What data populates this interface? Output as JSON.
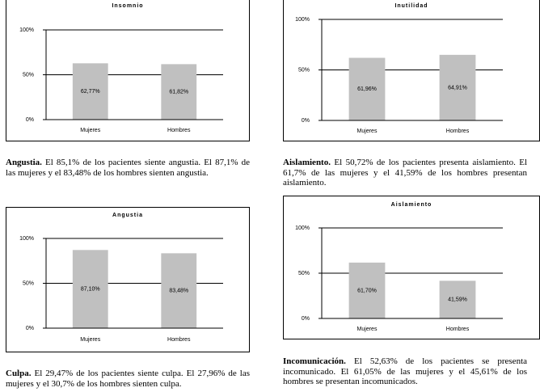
{
  "chart_data": [
    {
      "type": "bar",
      "title": "Insomnio",
      "categories": [
        "Mujeres",
        "Hombres"
      ],
      "values": [
        62.77,
        61.82
      ],
      "value_labels": [
        "62,77%",
        "61,82%"
      ],
      "color": "#c0c0c0",
      "ylim": [
        0,
        100
      ],
      "yticks": [
        {
          "value": 0,
          "label": "0%"
        },
        {
          "value": 50,
          "label": "50%"
        },
        {
          "value": 100,
          "label": "100%"
        }
      ],
      "grid": true
    },
    {
      "type": "bar",
      "title": "Inutilidad",
      "categories": [
        "Mujeres",
        "Hombres"
      ],
      "values": [
        61.96,
        64.91
      ],
      "value_labels": [
        "61,96%",
        "64,91%"
      ],
      "color": "#c0c0c0",
      "ylim": [
        0,
        100
      ],
      "yticks": [
        {
          "value": 0,
          "label": "0%"
        },
        {
          "value": 50,
          "label": "50%"
        },
        {
          "value": 100,
          "label": "100%"
        }
      ],
      "grid": true
    },
    {
      "type": "bar",
      "title": "Angustia",
      "categories": [
        "Mujeres",
        "Hombres"
      ],
      "values": [
        87.1,
        83.48
      ],
      "value_labels": [
        "87,10%",
        "83,48%"
      ],
      "color": "#c0c0c0",
      "ylim": [
        0,
        100
      ],
      "yticks": [
        {
          "value": 0,
          "label": "0%"
        },
        {
          "value": 50,
          "label": "50%"
        },
        {
          "value": 100,
          "label": "100%"
        }
      ],
      "grid": true
    },
    {
      "type": "bar",
      "title": "Aislamiento",
      "categories": [
        "Mujeres",
        "Hombres"
      ],
      "values": [
        61.7,
        41.59
      ],
      "value_labels": [
        "61,70%",
        "41,59%"
      ],
      "color": "#c0c0c0",
      "ylim": [
        0,
        100
      ],
      "yticks": [
        {
          "value": 0,
          "label": "0%"
        },
        {
          "value": 50,
          "label": "50%"
        },
        {
          "value": 100,
          "label": "100%"
        }
      ],
      "grid": true
    }
  ],
  "paragraphs": [
    {
      "lead": "Angustia.",
      "text": "El 85,1% de los pacientes siente angustia. El 87,1% de las mujeres y el 83,48% de los hombres sienten angustia."
    },
    {
      "lead": "Aislamiento.",
      "text": "El 50,72% de los pacientes presenta aislamiento. El 61,7% de las mujeres y el 41,59% de los hombres presentan aislamiento."
    },
    {
      "lead": "Culpa.",
      "text": "El 29,47% de los pacientes siente culpa. El 27,96% de las mujeres y el 30,7% de los hombres sienten culpa."
    },
    {
      "lead": "Incomunicación.",
      "text": "El 52,63% de los pacientes se presenta incomunicado. El 61,05% de las mujeres y el 45,61% de los hombres se presentan incomunicados."
    }
  ]
}
